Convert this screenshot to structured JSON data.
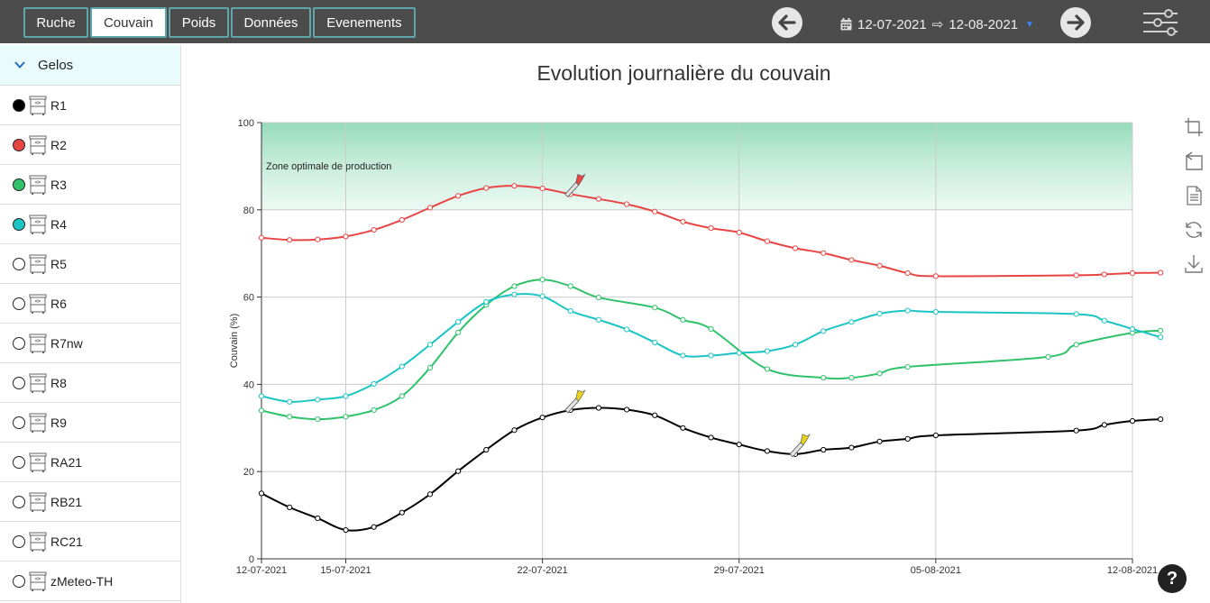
{
  "header": {
    "tabs": [
      {
        "label": "Ruche",
        "active": false
      },
      {
        "label": "Couvain",
        "active": true
      },
      {
        "label": "Poids",
        "active": false
      },
      {
        "label": "Données",
        "active": false
      },
      {
        "label": "Evenements",
        "active": false
      }
    ],
    "date_start": "12-07-2021",
    "date_arrow": "⇨",
    "date_end": "12-08-2021"
  },
  "sidebar": {
    "group": "Gelos",
    "hives": [
      {
        "name": "R1",
        "color": "#000000",
        "filled": true
      },
      {
        "name": "R2",
        "color": "#e84545",
        "filled": true
      },
      {
        "name": "R3",
        "color": "#2fc26b",
        "filled": true
      },
      {
        "name": "R4",
        "color": "#1cc4c4",
        "filled": true
      },
      {
        "name": "R5",
        "color": "#ffffff",
        "filled": false
      },
      {
        "name": "R6",
        "color": "#ffffff",
        "filled": false
      },
      {
        "name": "R7nw",
        "color": "#ffffff",
        "filled": false
      },
      {
        "name": "R8",
        "color": "#ffffff",
        "filled": false
      },
      {
        "name": "R9",
        "color": "#ffffff",
        "filled": false
      },
      {
        "name": "RA21",
        "color": "#ffffff",
        "filled": false
      },
      {
        "name": "RB21",
        "color": "#ffffff",
        "filled": false
      },
      {
        "name": "RC21",
        "color": "#ffffff",
        "filled": false
      },
      {
        "name": "zMeteo-TH",
        "color": "#ffffff",
        "filled": false
      }
    ]
  },
  "chart": {
    "title": "Evolution journalière du couvain"
  },
  "help_label": "?",
  "chart_data": {
    "type": "line",
    "title": "Evolution journalière du couvain",
    "ylabel": "Couvain (%)",
    "xlabel": "",
    "ylim": [
      0,
      100
    ],
    "yticks": [
      "0",
      "20",
      "40",
      "60",
      "80",
      "100"
    ],
    "xlim": [
      "12-07-2021",
      "12-08-2021"
    ],
    "xticks": [
      "12-07-2021",
      "15-07-2021",
      "22-07-2021",
      "29-07-2021",
      "05-08-2021",
      "12-08-2021"
    ],
    "zone_label": "Zone optimale de production",
    "zone_range": [
      80,
      100
    ],
    "grid": true,
    "series": [
      {
        "name": "R2",
        "color": "#e84545",
        "points": [
          [
            "12-07-2021",
            73.6
          ],
          [
            "13-07-2021",
            73.1
          ],
          [
            "14-07-2021",
            73.2
          ],
          [
            "15-07-2021",
            73.9
          ],
          [
            "16-07-2021",
            75.4
          ],
          [
            "17-07-2021",
            77.7
          ],
          [
            "18-07-2021",
            80.5
          ],
          [
            "19-07-2021",
            83.2
          ],
          [
            "20-07-2021",
            85.0
          ],
          [
            "21-07-2021",
            85.5
          ],
          [
            "22-07-2021",
            84.9
          ],
          [
            "23-07-2021",
            83.6
          ],
          [
            "24-07-2021",
            82.5
          ],
          [
            "25-07-2021",
            81.3
          ],
          [
            "26-07-2021",
            79.6
          ],
          [
            "27-07-2021",
            77.3
          ],
          [
            "28-07-2021",
            75.8
          ],
          [
            "29-07-2021",
            74.8
          ],
          [
            "30-07-2021",
            72.8
          ],
          [
            "31-07-2021",
            71.2
          ],
          [
            "01-08-2021",
            70.1
          ],
          [
            "02-08-2021",
            68.5
          ],
          [
            "03-08-2021",
            67.2
          ],
          [
            "04-08-2021",
            65.5
          ],
          [
            "05-08-2021",
            64.8
          ],
          [
            "10-08-2021",
            65.0
          ],
          [
            "11-08-2021",
            65.2
          ],
          [
            "12-08-2021",
            65.5
          ],
          [
            "13-08-2021",
            65.6
          ]
        ]
      },
      {
        "name": "R3",
        "color": "#2fc26b",
        "points": [
          [
            "12-07-2021",
            34.0
          ],
          [
            "13-07-2021",
            32.6
          ],
          [
            "14-07-2021",
            32.0
          ],
          [
            "15-07-2021",
            32.6
          ],
          [
            "16-07-2021",
            34.1
          ],
          [
            "17-07-2021",
            37.3
          ],
          [
            "18-07-2021",
            43.8
          ],
          [
            "19-07-2021",
            51.9
          ],
          [
            "20-07-2021",
            58.2
          ],
          [
            "21-07-2021",
            62.5
          ],
          [
            "22-07-2021",
            64.0
          ],
          [
            "23-07-2021",
            62.5
          ],
          [
            "24-07-2021",
            59.9
          ],
          [
            "26-07-2021",
            57.6
          ],
          [
            "27-07-2021",
            54.8
          ],
          [
            "28-07-2021",
            52.7
          ],
          [
            "30-07-2021",
            43.5
          ],
          [
            "01-08-2021",
            41.5
          ],
          [
            "02-08-2021",
            41.5
          ],
          [
            "03-08-2021",
            42.5
          ],
          [
            "04-08-2021",
            44.0
          ],
          [
            "09-08-2021",
            46.3
          ],
          [
            "10-08-2021",
            49.1
          ],
          [
            "12-08-2021",
            51.8
          ],
          [
            "13-08-2021",
            52.3
          ]
        ]
      },
      {
        "name": "R4",
        "color": "#1cc4c4",
        "points": [
          [
            "12-07-2021",
            37.3
          ],
          [
            "13-07-2021",
            36.0
          ],
          [
            "14-07-2021",
            36.5
          ],
          [
            "15-07-2021",
            37.3
          ],
          [
            "16-07-2021",
            40.1
          ],
          [
            "17-07-2021",
            44.1
          ],
          [
            "18-07-2021",
            49.1
          ],
          [
            "19-07-2021",
            54.3
          ],
          [
            "20-07-2021",
            58.9
          ],
          [
            "21-07-2021",
            60.6
          ],
          [
            "22-07-2021",
            60.2
          ],
          [
            "23-07-2021",
            56.8
          ],
          [
            "24-07-2021",
            54.8
          ],
          [
            "25-07-2021",
            52.6
          ],
          [
            "26-07-2021",
            49.6
          ],
          [
            "27-07-2021",
            46.6
          ],
          [
            "28-07-2021",
            46.6
          ],
          [
            "29-07-2021",
            47.2
          ],
          [
            "30-07-2021",
            47.6
          ],
          [
            "31-07-2021",
            49.1
          ],
          [
            "01-08-2021",
            52.2
          ],
          [
            "02-08-2021",
            54.3
          ],
          [
            "03-08-2021",
            56.2
          ],
          [
            "04-08-2021",
            56.9
          ],
          [
            "05-08-2021",
            56.6
          ],
          [
            "10-08-2021",
            56.1
          ],
          [
            "11-08-2021",
            54.6
          ],
          [
            "12-08-2021",
            52.7
          ],
          [
            "13-08-2021",
            50.8
          ]
        ]
      },
      {
        "name": "R1",
        "color": "#000000",
        "points": [
          [
            "12-07-2021",
            15.0
          ],
          [
            "13-07-2021",
            11.8
          ],
          [
            "14-07-2021",
            9.3
          ],
          [
            "15-07-2021",
            6.6
          ],
          [
            "16-07-2021",
            7.3
          ],
          [
            "17-07-2021",
            10.6
          ],
          [
            "18-07-2021",
            14.8
          ],
          [
            "19-07-2021",
            20.1
          ],
          [
            "20-07-2021",
            25.0
          ],
          [
            "21-07-2021",
            29.5
          ],
          [
            "22-07-2021",
            32.4
          ],
          [
            "23-07-2021",
            34.1
          ],
          [
            "24-07-2021",
            34.6
          ],
          [
            "25-07-2021",
            34.2
          ],
          [
            "26-07-2021",
            32.9
          ],
          [
            "27-07-2021",
            30.0
          ],
          [
            "28-07-2021",
            27.8
          ],
          [
            "29-07-2021",
            26.2
          ],
          [
            "30-07-2021",
            24.7
          ],
          [
            "31-07-2021",
            24.0
          ],
          [
            "01-08-2021",
            25.0
          ],
          [
            "02-08-2021",
            25.5
          ],
          [
            "03-08-2021",
            26.9
          ],
          [
            "04-08-2021",
            27.5
          ],
          [
            "05-08-2021",
            28.3
          ],
          [
            "10-08-2021",
            29.4
          ],
          [
            "11-08-2021",
            30.7
          ],
          [
            "12-08-2021",
            31.6
          ],
          [
            "13-08-2021",
            32.0
          ]
        ]
      }
    ],
    "markers": [
      {
        "series": "R2",
        "date": "23-07-2021",
        "value": 83.6,
        "color": "#e84545"
      },
      {
        "series": "R1",
        "date": "23-07-2021",
        "value": 34.1,
        "color": "#e8d020"
      },
      {
        "series": "R1",
        "date": "31-07-2021",
        "value": 24.0,
        "color": "#e8d020"
      }
    ]
  }
}
